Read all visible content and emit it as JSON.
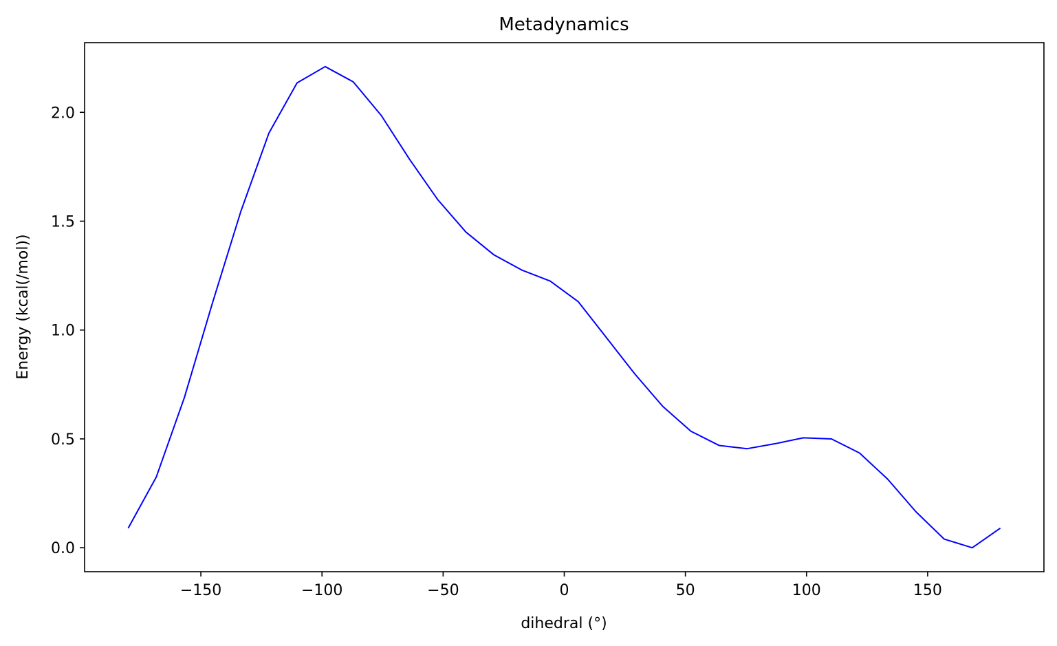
{
  "chart_data": {
    "type": "line",
    "title": "Metadynamics",
    "xlabel": "dihedral (°)",
    "ylabel": "Energy (kcal(/mol))",
    "xlim": [
      -198,
      198
    ],
    "ylim": [
      -0.11,
      2.32
    ],
    "xticks": [
      {
        "value": -150,
        "label": "−150"
      },
      {
        "value": -100,
        "label": "−100"
      },
      {
        "value": -50,
        "label": "−50"
      },
      {
        "value": 0,
        "label": "0"
      },
      {
        "value": 50,
        "label": "50"
      },
      {
        "value": 100,
        "label": "100"
      },
      {
        "value": 150,
        "label": "150"
      }
    ],
    "yticks": [
      {
        "value": 0.0,
        "label": "0.0"
      },
      {
        "value": 0.5,
        "label": "0.5"
      },
      {
        "value": 1.0,
        "label": "1.0"
      },
      {
        "value": 1.5,
        "label": "1.5"
      },
      {
        "value": 2.0,
        "label": "2.0"
      }
    ],
    "grid": false,
    "series": [
      {
        "color": "#0000ff",
        "x": [
          -180.0,
          -168.4,
          -156.8,
          -145.2,
          -133.5,
          -121.9,
          -110.3,
          -98.7,
          -87.1,
          -75.5,
          -63.9,
          -52.3,
          -40.6,
          -29.0,
          -17.4,
          -5.8,
          5.8,
          17.4,
          29.0,
          40.6,
          52.3,
          63.9,
          75.5,
          87.1,
          98.7,
          110.3,
          121.9,
          133.5,
          145.2,
          156.8,
          168.4,
          180.0
        ],
        "y": [
          0.09,
          0.325,
          0.69,
          1.125,
          1.545,
          1.905,
          2.135,
          2.21,
          2.14,
          1.985,
          1.785,
          1.6,
          1.45,
          1.345,
          1.275,
          1.225,
          1.13,
          0.965,
          0.8,
          0.65,
          0.535,
          0.47,
          0.455,
          0.478,
          0.505,
          0.5,
          0.435,
          0.315,
          0.165,
          0.04,
          0.0,
          0.09
        ]
      }
    ]
  }
}
